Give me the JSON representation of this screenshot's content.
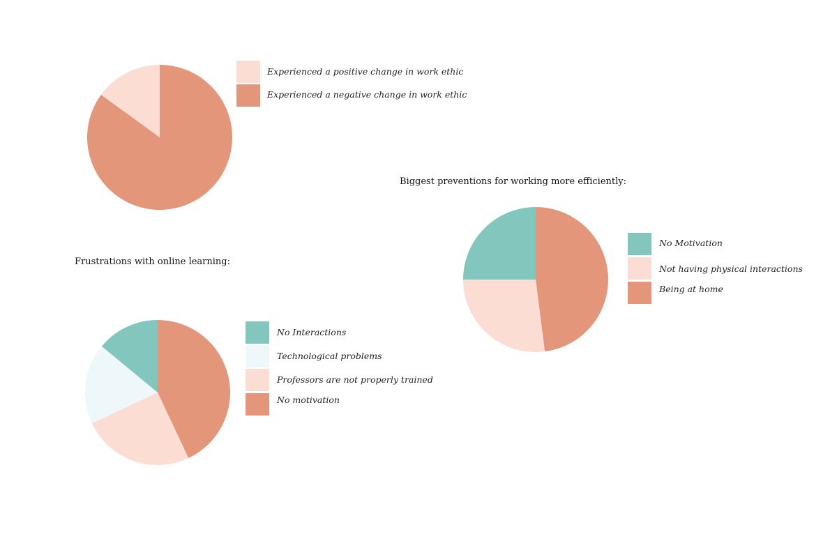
{
  "colors": {
    "coral": "#E4967A",
    "pink": "#FCDDD3",
    "teal": "#82C6BE",
    "ice": "#EEF7FA"
  },
  "chart_data": [
    {
      "type": "pie",
      "title": "",
      "legend": "right",
      "slices": [
        {
          "label": "Experienced a positive change in work ethic",
          "value": 15,
          "color": "#FCDDD3"
        },
        {
          "label": "Experienced a negative change in work ethic",
          "value": 85,
          "color": "#E4967A"
        }
      ]
    },
    {
      "type": "pie",
      "title": "Biggest preventions for working more efficiently:",
      "legend": "right",
      "slices": [
        {
          "label": "No Motivation",
          "value": 25,
          "color": "#82C6BE"
        },
        {
          "label": "Not having physical interactions",
          "value": 27,
          "color": "#FCDDD3"
        },
        {
          "label": "Being at home",
          "value": 48,
          "color": "#E4967A"
        }
      ]
    },
    {
      "type": "pie",
      "title": "Frustrations with online learning:",
      "legend": "right",
      "slices": [
        {
          "label": "No Interactions",
          "value": 14,
          "color": "#82C6BE"
        },
        {
          "label": "Technological problems",
          "value": 18,
          "color": "#EEF7FA"
        },
        {
          "label": "Professors are not properly trained",
          "value": 25,
          "color": "#FCDDD3"
        },
        {
          "label": "No motivation",
          "value": 43,
          "color": "#E4967A"
        }
      ]
    }
  ]
}
